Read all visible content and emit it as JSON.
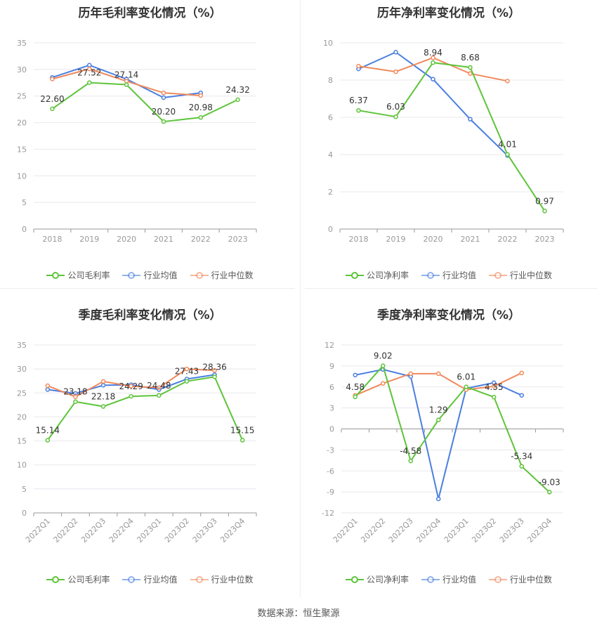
{
  "source_text": "数据来源：恒生聚源",
  "chart_data": [
    {
      "type": "line",
      "title": "历年毛利率变化情况（%）",
      "x": [
        "2018",
        "2019",
        "2020",
        "2021",
        "2022",
        "2023"
      ],
      "ylim": [
        0,
        35
      ],
      "yticks": [
        "0",
        "5",
        "10",
        "15",
        "20",
        "25",
        "30",
        "35"
      ],
      "series": [
        {
          "name": "公司毛利率",
          "color": "#5ec43a",
          "values": [
            22.6,
            27.52,
            27.14,
            20.2,
            20.98,
            24.32
          ],
          "labels": [
            "22.60",
            "27.52",
            "27.14",
            "20.20",
            "20.98",
            "24.32"
          ]
        },
        {
          "name": "行业均值",
          "color": "#4a7fe0",
          "values": [
            28.5,
            30.8,
            28.2,
            24.7,
            25.6,
            null
          ]
        },
        {
          "name": "行业中位数",
          "color": "#f08a5d",
          "values": [
            28.2,
            30.1,
            27.8,
            25.6,
            25.1,
            null
          ]
        }
      ],
      "legend_position": "bottom",
      "grid": true
    },
    {
      "type": "line",
      "title": "历年净利率变化情况（%）",
      "x": [
        "2018",
        "2019",
        "2020",
        "2021",
        "2022",
        "2023"
      ],
      "ylim": [
        0,
        10
      ],
      "yticks": [
        "0",
        "2",
        "4",
        "6",
        "8",
        "10"
      ],
      "series": [
        {
          "name": "公司净利率",
          "color": "#5ec43a",
          "values": [
            6.37,
            6.03,
            8.94,
            8.68,
            4.01,
            0.97
          ],
          "labels": [
            "6.37",
            "6.03",
            "8.94",
            "8.68",
            "4.01",
            "0.97"
          ]
        },
        {
          "name": "行业均值",
          "color": "#4a7fe0",
          "values": [
            8.6,
            9.5,
            8.05,
            5.9,
            3.95,
            null
          ]
        },
        {
          "name": "行业中位数",
          "color": "#f08a5d",
          "values": [
            8.75,
            8.45,
            9.2,
            8.35,
            7.95,
            null
          ]
        }
      ],
      "legend_position": "bottom",
      "grid": true
    },
    {
      "type": "line",
      "title": "季度毛利率变化情况（%）",
      "x": [
        "2022Q1",
        "2022Q2",
        "2022Q3",
        "2022Q4",
        "2023Q1",
        "2023Q2",
        "2023Q3",
        "2023Q4"
      ],
      "ylim": [
        0,
        35
      ],
      "yticks": [
        "0",
        "5",
        "10",
        "15",
        "20",
        "25",
        "30",
        "35"
      ],
      "series": [
        {
          "name": "公司毛利率",
          "color": "#5ec43a",
          "values": [
            15.14,
            23.18,
            22.18,
            24.29,
            24.48,
            27.43,
            28.36,
            15.15
          ],
          "labels": [
            "15.14",
            "23.18",
            "22.18",
            "24.29",
            "24.48",
            "27.43",
            "28.36",
            "15.15"
          ]
        },
        {
          "name": "行业均值",
          "color": "#4a7fe0",
          "values": [
            25.7,
            24.9,
            26.6,
            26.7,
            25.7,
            27.9,
            28.8,
            null
          ]
        },
        {
          "name": "行业中位数",
          "color": "#f08a5d",
          "values": [
            26.5,
            24.2,
            27.4,
            26.4,
            26.1,
            30.0,
            29.7,
            null
          ]
        }
      ],
      "legend_position": "bottom",
      "grid": true
    },
    {
      "type": "line",
      "title": "季度净利率变化情况（%）",
      "x": [
        "2022Q1",
        "2022Q2",
        "2022Q3",
        "2022Q4",
        "2023Q1",
        "2023Q2",
        "2023Q3",
        "2023Q4"
      ],
      "ylim": [
        -12,
        12
      ],
      "yticks": [
        "-12",
        "-9",
        "-6",
        "-3",
        "0",
        "3",
        "6",
        "9",
        "12"
      ],
      "series": [
        {
          "name": "公司净利率",
          "color": "#5ec43a",
          "values": [
            4.58,
            9.02,
            -4.58,
            1.29,
            6.01,
            4.55,
            -5.34,
            -9.03
          ],
          "labels": [
            "4.58",
            "9.02",
            "-4.58",
            "1.29",
            "6.01",
            "4.55",
            "-5.34",
            "-9.03"
          ]
        },
        {
          "name": "行业均值",
          "color": "#4a7fe0",
          "values": [
            7.7,
            8.5,
            7.5,
            -10.0,
            5.8,
            6.6,
            4.8,
            null
          ]
        },
        {
          "name": "行业中位数",
          "color": "#f08a5d",
          "values": [
            4.8,
            6.5,
            7.9,
            7.9,
            5.6,
            6.1,
            8.0,
            null
          ]
        }
      ],
      "legend_position": "bottom",
      "grid": true
    }
  ]
}
